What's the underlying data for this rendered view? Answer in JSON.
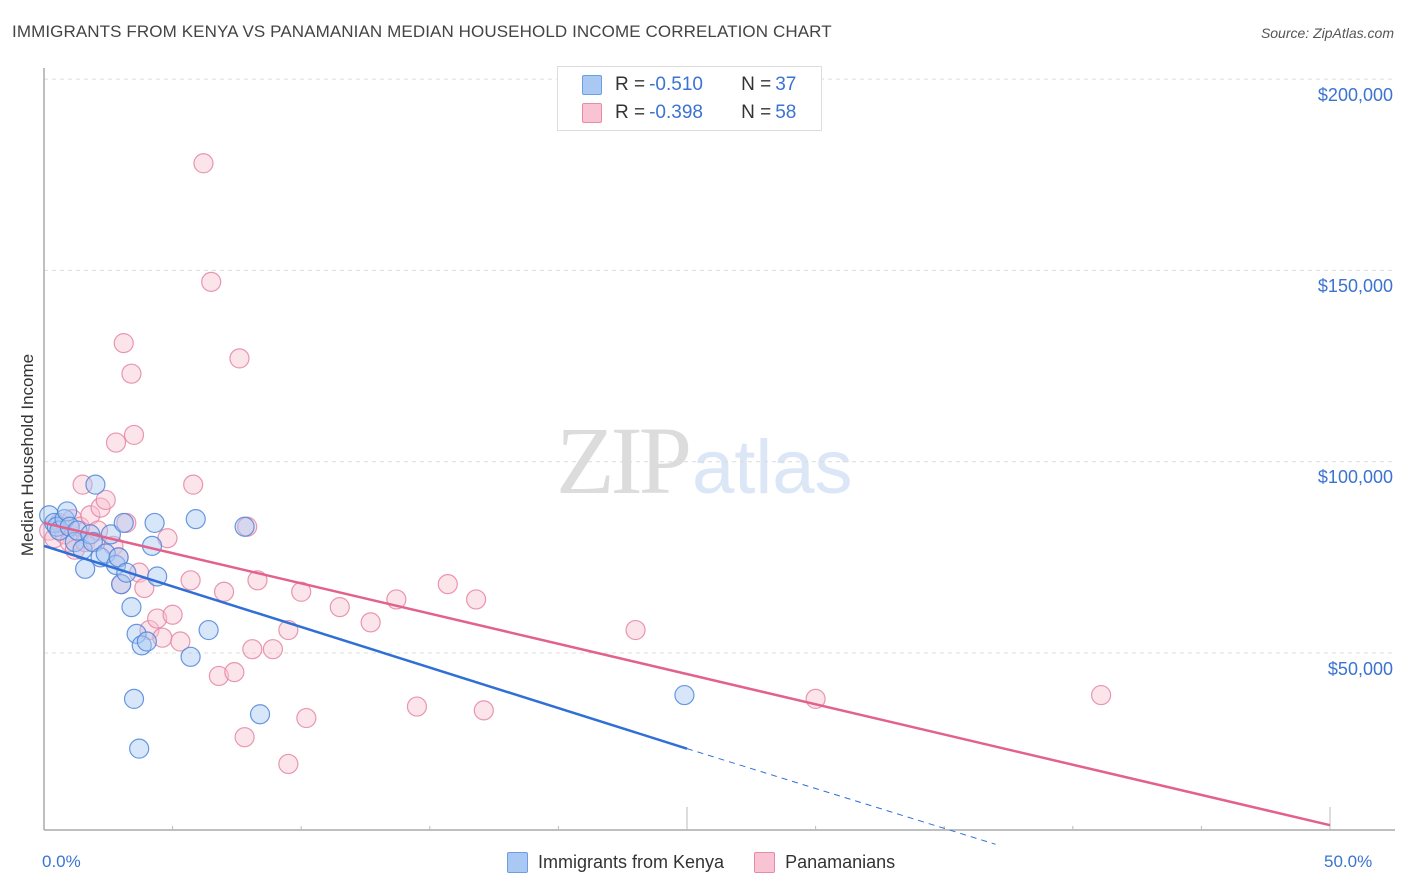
{
  "header": {
    "title": "IMMIGRANTS FROM KENYA VS PANAMANIAN MEDIAN HOUSEHOLD INCOME CORRELATION CHART",
    "source": "Source: ZipAtlas.com"
  },
  "watermark": {
    "zip": "ZIP",
    "atlas": "atlas"
  },
  "legend_top": {
    "rows": [
      {
        "r_label": "R = ",
        "r_value": "-0.510",
        "n_label": "N = ",
        "n_value": "37",
        "color": "#a9c8f3",
        "border": "#6c9ee0"
      },
      {
        "r_label": "R = ",
        "r_value": "-0.398",
        "n_label": "N = ",
        "n_value": "58",
        "color": "#f8c3d3",
        "border": "#e88aa7"
      }
    ]
  },
  "legend_bottom": {
    "items": [
      {
        "label": "Immigrants from Kenya"
      },
      {
        "label": "Panamanians"
      }
    ]
  },
  "axes": {
    "y_label": "Median Household Income",
    "y_ticks": [
      "$200,000",
      "$150,000",
      "$100,000",
      "$50,000"
    ],
    "x_ticks": [
      "0.0%",
      "50.0%"
    ]
  },
  "colors": {
    "kenya_fill": "#a9c8f3",
    "kenya_stroke": "#4f86d9",
    "kenya_line": "#2f6fd6",
    "panama_fill": "#f8c3d3",
    "panama_stroke": "#e585a4",
    "panama_line": "#e2628d",
    "tick_label": "#3b73d1"
  },
  "chart_data": {
    "type": "scatter",
    "title": "IMMIGRANTS FROM KENYA VS PANAMANIAN MEDIAN HOUSEHOLD INCOME CORRELATION CHART",
    "xlabel": "",
    "ylabel": "Median Household Income",
    "xlim": [
      0,
      50
    ],
    "ylim": [
      0,
      210000
    ],
    "x_unit": "%",
    "grid": true,
    "legend_position": "top-center and bottom",
    "series": [
      {
        "name": "Immigrants from Kenya",
        "R": -0.51,
        "N": 37,
        "points": [
          [
            0.2,
            86000
          ],
          [
            0.4,
            84000
          ],
          [
            0.5,
            83000
          ],
          [
            0.6,
            82000
          ],
          [
            0.8,
            85000
          ],
          [
            0.9,
            87000
          ],
          [
            1.0,
            83000
          ],
          [
            1.2,
            79000
          ],
          [
            1.3,
            82000
          ],
          [
            1.5,
            77000
          ],
          [
            1.6,
            72000
          ],
          [
            1.8,
            81000
          ],
          [
            1.9,
            79000
          ],
          [
            2.0,
            94000
          ],
          [
            2.2,
            75000
          ],
          [
            2.4,
            76000
          ],
          [
            2.6,
            81000
          ],
          [
            2.8,
            73000
          ],
          [
            2.9,
            75000
          ],
          [
            3.0,
            68000
          ],
          [
            3.1,
            84000
          ],
          [
            3.2,
            71000
          ],
          [
            3.4,
            62000
          ],
          [
            3.6,
            55000
          ],
          [
            3.8,
            52000
          ],
          [
            3.5,
            38000
          ],
          [
            3.7,
            25000
          ],
          [
            4.0,
            53000
          ],
          [
            4.2,
            78000
          ],
          [
            4.3,
            84000
          ],
          [
            4.4,
            70000
          ],
          [
            5.7,
            49000
          ],
          [
            5.9,
            85000
          ],
          [
            6.4,
            56000
          ],
          [
            7.8,
            83000
          ],
          [
            8.4,
            34000
          ],
          [
            24.9,
            39000
          ]
        ],
        "trend": {
          "x": [
            0,
            25
          ],
          "y": [
            78000,
            25000
          ],
          "dashed_extension_to": [
            37,
            0
          ]
        }
      },
      {
        "name": "Panamanians",
        "R": -0.398,
        "N": 58,
        "points": [
          [
            0.2,
            82000
          ],
          [
            0.4,
            80000
          ],
          [
            0.6,
            84000
          ],
          [
            0.8,
            81000
          ],
          [
            1.0,
            79000
          ],
          [
            1.1,
            85000
          ],
          [
            1.2,
            77000
          ],
          [
            1.4,
            83000
          ],
          [
            1.5,
            94000
          ],
          [
            1.6,
            79000
          ],
          [
            1.8,
            86000
          ],
          [
            2.0,
            79000
          ],
          [
            2.1,
            82000
          ],
          [
            2.2,
            88000
          ],
          [
            2.4,
            90000
          ],
          [
            2.7,
            78000
          ],
          [
            2.9,
            75000
          ],
          [
            3.0,
            68000
          ],
          [
            2.8,
            105000
          ],
          [
            3.1,
            131000
          ],
          [
            3.2,
            84000
          ],
          [
            3.4,
            123000
          ],
          [
            3.5,
            107000
          ],
          [
            3.7,
            71000
          ],
          [
            3.9,
            67000
          ],
          [
            4.1,
            56000
          ],
          [
            4.4,
            59000
          ],
          [
            4.6,
            54000
          ],
          [
            4.8,
            80000
          ],
          [
            5.0,
            60000
          ],
          [
            5.3,
            53000
          ],
          [
            5.8,
            94000
          ],
          [
            5.7,
            69000
          ],
          [
            6.2,
            178000
          ],
          [
            6.5,
            147000
          ],
          [
            6.8,
            44000
          ],
          [
            7.0,
            66000
          ],
          [
            7.4,
            45000
          ],
          [
            7.6,
            127000
          ],
          [
            7.8,
            28000
          ],
          [
            7.9,
            83000
          ],
          [
            8.1,
            51000
          ],
          [
            8.3,
            69000
          ],
          [
            8.9,
            51000
          ],
          [
            9.5,
            56000
          ],
          [
            9.5,
            21000
          ],
          [
            10.0,
            66000
          ],
          [
            10.2,
            33000
          ],
          [
            11.5,
            62000
          ],
          [
            12.7,
            58000
          ],
          [
            13.7,
            64000
          ],
          [
            14.5,
            36000
          ],
          [
            15.7,
            68000
          ],
          [
            16.8,
            64000
          ],
          [
            17.1,
            35000
          ],
          [
            23.0,
            56000
          ],
          [
            30.0,
            38000
          ],
          [
            41.1,
            39000
          ]
        ],
        "trend": {
          "x": [
            0,
            50
          ],
          "y": [
            84000,
            5000
          ]
        }
      }
    ]
  }
}
